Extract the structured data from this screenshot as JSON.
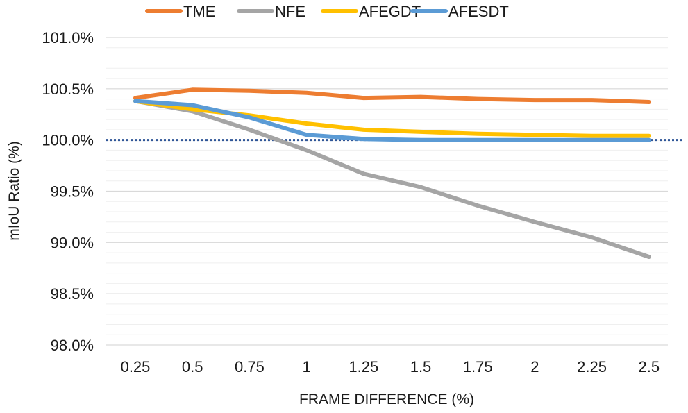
{
  "chart_data": {
    "type": "line",
    "title": "",
    "xlabel": "FRAME DIFFERENCE (%)",
    "ylabel": "mIoU Ratio (%)",
    "categories": [
      "0.25",
      "0.5",
      "0.75",
      "1",
      "1.25",
      "1.5",
      "1.75",
      "2",
      "2.25",
      "2.5"
    ],
    "ylim": [
      98.0,
      101.0
    ],
    "yticks": [
      "98.0%",
      "98.5%",
      "99.0%",
      "99.5%",
      "100.0%",
      "100.5%",
      "101.0%"
    ],
    "ytick_values": [
      98.0,
      98.5,
      99.0,
      99.5,
      100.0,
      100.5,
      101.0
    ],
    "minor_grid_step": 0.1,
    "reference_line": 100.0,
    "legend_position": "top",
    "series": [
      {
        "name": "TME",
        "color": "#ED7D31",
        "values": [
          100.41,
          100.49,
          100.48,
          100.46,
          100.41,
          100.42,
          100.4,
          100.39,
          100.39,
          100.37
        ]
      },
      {
        "name": "NFE",
        "color": "#A5A5A5",
        "values": [
          100.38,
          100.28,
          100.1,
          99.9,
          99.67,
          99.54,
          99.36,
          99.2,
          99.05,
          98.86
        ]
      },
      {
        "name": "AFEGDT",
        "color": "#FFC000",
        "values": [
          100.38,
          100.3,
          100.24,
          100.16,
          100.1,
          100.08,
          100.06,
          100.05,
          100.04,
          100.04
        ]
      },
      {
        "name": "AFESDT",
        "color": "#5B9BD5",
        "values": [
          100.38,
          100.34,
          100.22,
          100.05,
          100.01,
          100.0,
          100.0,
          100.0,
          100.0,
          100.0
        ]
      }
    ],
    "reference_color": "#2F5597"
  }
}
